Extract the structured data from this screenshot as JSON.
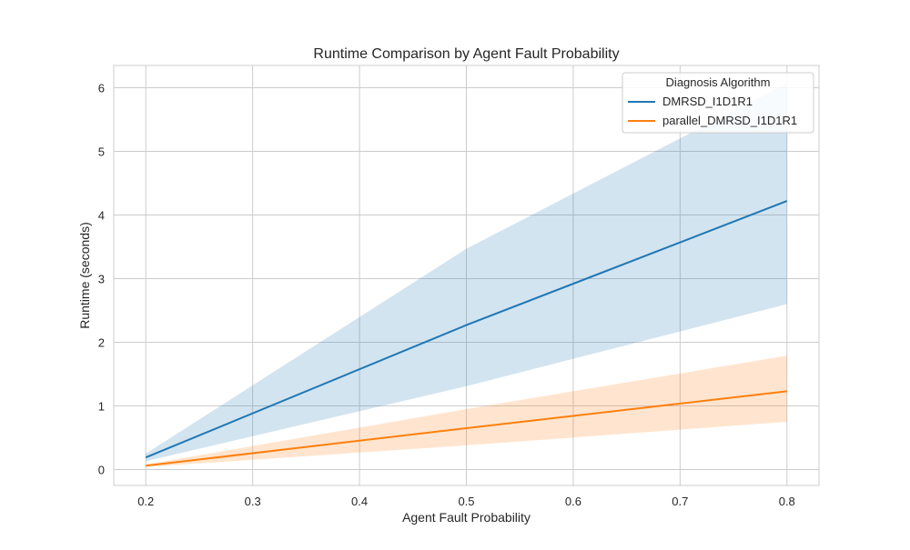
{
  "chart_data": {
    "type": "line",
    "title": "Runtime Comparison by Agent Fault Probability",
    "xlabel": "Agent Fault Probability",
    "ylabel": "Runtime (seconds)",
    "xlim": [
      0.17,
      0.83
    ],
    "ylim": [
      -0.25,
      6.35
    ],
    "xticks": [
      0.2,
      0.3,
      0.4,
      0.5,
      0.6,
      0.7,
      0.8
    ],
    "xtick_labels": [
      "0.2",
      "0.3",
      "0.4",
      "0.5",
      "0.6",
      "0.7",
      "0.8"
    ],
    "yticks": [
      0,
      1,
      2,
      3,
      4,
      5,
      6
    ],
    "ytick_labels": [
      "0",
      "1",
      "2",
      "3",
      "4",
      "5",
      "6"
    ],
    "grid": true,
    "legend": {
      "title": "Diagnosis Algorithm",
      "placement": "top-right"
    },
    "x": [
      0.2,
      0.5,
      0.8
    ],
    "series": [
      {
        "name": "DMRSD_I1D1R1",
        "color": "#1f77b4",
        "values": [
          0.19,
          2.27,
          4.22
        ],
        "ci_lower": [
          0.13,
          1.31,
          2.6
        ],
        "ci_upper": [
          0.25,
          3.47,
          6.07
        ]
      },
      {
        "name": "parallel_DMRSD_I1D1R1",
        "color": "#ff7f0e",
        "values": [
          0.06,
          0.65,
          1.23
        ],
        "ci_lower": [
          0.04,
          0.38,
          0.75
        ],
        "ci_upper": [
          0.08,
          0.95,
          1.79
        ]
      }
    ]
  }
}
